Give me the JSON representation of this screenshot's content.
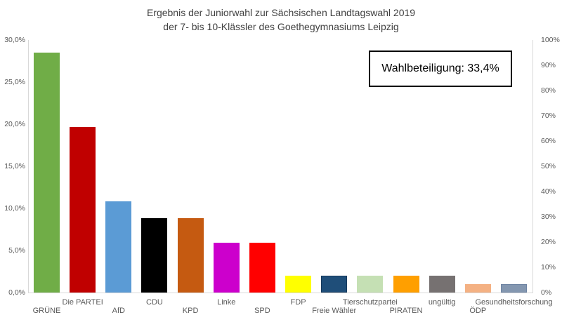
{
  "title": {
    "line1": "Ergebnis der Juniorwahl zur Sächsischen Landtagswahl 2019",
    "line2": "der 7- bis 10-Klässler des Goethegymnasiums Leipzig"
  },
  "annotation": {
    "text": "Wahlbeteiligung: 33,4%"
  },
  "chart_data": {
    "type": "bar",
    "title": "Ergebnis der Juniorwahl zur Sächsischen Landtagswahl 2019 der 7- bis 10-Klässler des Goethegymnasiums Leipzig",
    "categories": [
      "GRÜNE",
      "Die PARTEI",
      "AfD",
      "CDU",
      "KPD",
      "Linke",
      "SPD",
      "FDP",
      "Freie Wähler",
      "Tierschutzpartei",
      "PIRATEN",
      "ungültig",
      "ÖDP",
      "Gesundheitsforschung"
    ],
    "values": [
      28.5,
      19.7,
      10.8,
      8.8,
      8.8,
      5.9,
      5.9,
      2.0,
      2.0,
      2.0,
      2.0,
      2.0,
      1.0,
      1.0
    ],
    "bar_colors": [
      "#70AD47",
      "#C00000",
      "#5B9BD5",
      "#000000",
      "#C55A11",
      "#CC00CC",
      "#FF0000",
      "#FFFF00",
      "#1F4E79",
      "#C5E0B4",
      "#FF9F00",
      "#767171",
      "#F4B183",
      "#8497B0"
    ],
    "bar_border_colors": [
      null,
      null,
      null,
      null,
      null,
      null,
      null,
      null,
      "#16395C",
      null,
      null,
      null,
      null,
      "#6E84A3"
    ],
    "xlabel": "",
    "ylabel": "",
    "grid": false,
    "legend": false,
    "left_axis": {
      "min": 0,
      "max": 30,
      "ticks": [
        {
          "value": 0,
          "label": "0,0%"
        },
        {
          "value": 5,
          "label": "5,0%"
        },
        {
          "value": 10,
          "label": "10,0%"
        },
        {
          "value": 15,
          "label": "15,0%"
        },
        {
          "value": 20,
          "label": "20,0%"
        },
        {
          "value": 25,
          "label": "25,0%"
        },
        {
          "value": 30,
          "label": "30,0%"
        }
      ]
    },
    "right_axis": {
      "min": 0,
      "max": 100,
      "ticks": [
        {
          "value": 0,
          "label": "0%"
        },
        {
          "value": 10,
          "label": "10%"
        },
        {
          "value": 20,
          "label": "20%"
        },
        {
          "value": 30,
          "label": "30%"
        },
        {
          "value": 40,
          "label": "40%"
        },
        {
          "value": 50,
          "label": "50%"
        },
        {
          "value": 60,
          "label": "60%"
        },
        {
          "value": 70,
          "label": "70%"
        },
        {
          "value": 80,
          "label": "80%"
        },
        {
          "value": 90,
          "label": "90%"
        },
        {
          "value": 100,
          "label": "100%"
        }
      ]
    }
  }
}
